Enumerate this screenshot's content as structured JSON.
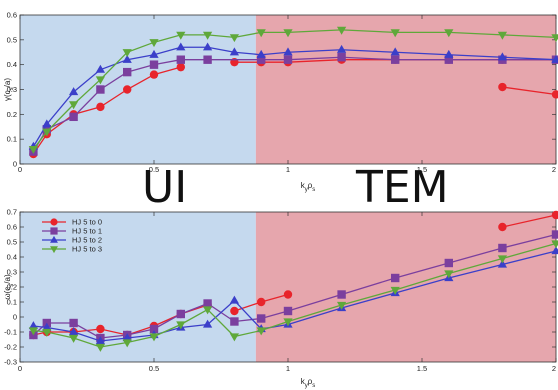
{
  "colors": {
    "ui_region": "#c5d9ee",
    "tem_region": "#e6a6ad",
    "series": [
      "#e8242b",
      "#7b3f9e",
      "#3b3fc9",
      "#5fa83a"
    ]
  },
  "region_labels": {
    "left": "UI",
    "right": "TEM",
    "boundary_x": 0.88
  },
  "chart_data": [
    {
      "type": "line",
      "ylabel": "γ(c_s/a)",
      "xlabel": "k_yρ_s",
      "xlim": [
        0,
        2
      ],
      "ylim": [
        0,
        0.6
      ],
      "x_ticks": [
        "0",
        "0.5",
        "1",
        "1.5",
        "2"
      ],
      "x_tick_values": [
        0,
        0.5,
        1,
        1.5,
        2
      ],
      "y_ticks": [
        "0",
        "0.1",
        "0.2",
        "0.3",
        "0.4",
        "0.5",
        "0.6"
      ],
      "y_tick_values": [
        0,
        0.1,
        0.2,
        0.3,
        0.4,
        0.5,
        0.6
      ],
      "series": [
        {
          "marker": "circle",
          "x": [
            0.05,
            0.1,
            0.2,
            0.3,
            0.4,
            0.5,
            0.6
          ],
          "y": [
            0.04,
            0.12,
            0.2,
            0.23,
            0.3,
            0.36,
            0.39
          ]
        },
        {
          "marker": "circle",
          "x": [
            0.8,
            0.9,
            1.0,
            1.2,
            1.4,
            1.6,
            1.8,
            2.0
          ],
          "y": [
            0.41,
            0.41,
            0.41,
            0.42,
            0.42,
            0.42,
            0.42,
            0.42
          ]
        },
        {
          "marker": "circle",
          "x": [
            1.8,
            2.0
          ],
          "y": [
            0.31,
            0.28
          ]
        },
        {
          "marker": "square",
          "x": [
            0.05,
            0.1,
            0.2,
            0.3,
            0.4,
            0.5,
            0.6,
            0.7,
            0.9,
            1.0,
            1.2,
            1.4,
            1.6,
            1.8,
            2.0
          ],
          "y": [
            0.05,
            0.14,
            0.19,
            0.3,
            0.37,
            0.4,
            0.42,
            0.42,
            0.42,
            0.42,
            0.43,
            0.42,
            0.42,
            0.42,
            0.42
          ]
        },
        {
          "marker": "triangle-up",
          "x": [
            0.05,
            0.1,
            0.2,
            0.3,
            0.4,
            0.5,
            0.6,
            0.7,
            0.8,
            0.9,
            1.0,
            1.2,
            1.4,
            1.6,
            1.8,
            2.0
          ],
          "y": [
            0.07,
            0.16,
            0.29,
            0.38,
            0.42,
            0.44,
            0.47,
            0.47,
            0.45,
            0.44,
            0.45,
            0.46,
            0.45,
            0.44,
            0.43,
            0.42
          ]
        },
        {
          "marker": "triangle-down",
          "x": [
            0.05,
            0.1,
            0.2,
            0.3,
            0.4,
            0.5,
            0.6,
            0.7,
            0.8,
            0.9,
            1.0,
            1.2,
            1.4,
            1.6,
            1.8,
            2.0
          ],
          "y": [
            0.06,
            0.13,
            0.24,
            0.34,
            0.45,
            0.49,
            0.52,
            0.52,
            0.51,
            0.53,
            0.53,
            0.54,
            0.53,
            0.53,
            0.52,
            0.51
          ]
        }
      ],
      "series_color_index": [
        0,
        0,
        0,
        1,
        2,
        3
      ]
    },
    {
      "type": "line",
      "ylabel": "ω(c_s/a)",
      "xlabel": "k_yρ_s",
      "xlim": [
        0,
        2
      ],
      "ylim": [
        -0.3,
        0.7
      ],
      "x_ticks": [
        "0",
        "0.5",
        "1",
        "1.5",
        "2"
      ],
      "x_tick_values": [
        0,
        0.5,
        1,
        1.5,
        2
      ],
      "y_ticks": [
        "-0.3",
        "-0.2",
        "-0.1",
        "0",
        "0.1",
        "0.2",
        "0.3",
        "0.4",
        "0.5",
        "0.6",
        "0.7"
      ],
      "y_tick_values": [
        -0.3,
        -0.2,
        -0.1,
        0,
        0.1,
        0.2,
        0.3,
        0.4,
        0.5,
        0.6,
        0.7
      ],
      "legend": {
        "position": "top-left",
        "entries": [
          "HJ 5 to 0",
          "HJ 5 to 1",
          "HJ 5 to 2",
          "HJ 5 to 3"
        ]
      },
      "series": [
        {
          "marker": "circle",
          "x": [
            0.05,
            0.1,
            0.2,
            0.3,
            0.4,
            0.5,
            0.6,
            0.7
          ],
          "y": [
            -0.12,
            -0.1,
            -0.1,
            -0.08,
            -0.12,
            -0.06,
            0.02,
            0.08
          ]
        },
        {
          "marker": "circle",
          "x": [
            0.8,
            0.9,
            1.0
          ],
          "y": [
            0.04,
            0.1,
            0.15
          ]
        },
        {
          "marker": "circle",
          "x": [
            1.8,
            2.0
          ],
          "y": [
            0.6,
            0.68
          ]
        },
        {
          "marker": "square",
          "x": [
            0.05,
            0.1,
            0.2,
            0.3,
            0.4,
            0.5,
            0.6,
            0.7,
            0.8,
            0.9,
            1.0,
            1.2,
            1.4,
            1.6,
            1.8,
            2.0
          ],
          "y": [
            -0.12,
            -0.04,
            -0.04,
            -0.14,
            -0.12,
            -0.08,
            0.02,
            0.09,
            -0.03,
            -0.01,
            0.04,
            0.15,
            0.26,
            0.36,
            0.46,
            0.55
          ]
        },
        {
          "marker": "triangle-up",
          "x": [
            0.05,
            0.1,
            0.2,
            0.3,
            0.4,
            0.5,
            0.6,
            0.7,
            0.8,
            0.9,
            1.0,
            1.2,
            1.4,
            1.6,
            1.8,
            2.0
          ],
          "y": [
            -0.06,
            -0.07,
            -0.1,
            -0.16,
            -0.14,
            -0.12,
            -0.07,
            -0.05,
            0.11,
            -0.08,
            -0.05,
            0.06,
            0.16,
            0.26,
            0.35,
            0.44
          ]
        },
        {
          "marker": "triangle-down",
          "x": [
            0.05,
            0.1,
            0.2,
            0.3,
            0.4,
            0.5,
            0.6,
            0.7,
            0.8,
            0.9,
            1.0,
            1.2,
            1.4,
            1.6,
            1.8,
            2.0
          ],
          "y": [
            -0.09,
            -0.1,
            -0.14,
            -0.2,
            -0.17,
            -0.13,
            -0.05,
            0.05,
            -0.13,
            -0.09,
            -0.03,
            0.08,
            0.18,
            0.29,
            0.39,
            0.49
          ]
        }
      ],
      "series_color_index": [
        0,
        0,
        0,
        1,
        2,
        3
      ]
    }
  ]
}
